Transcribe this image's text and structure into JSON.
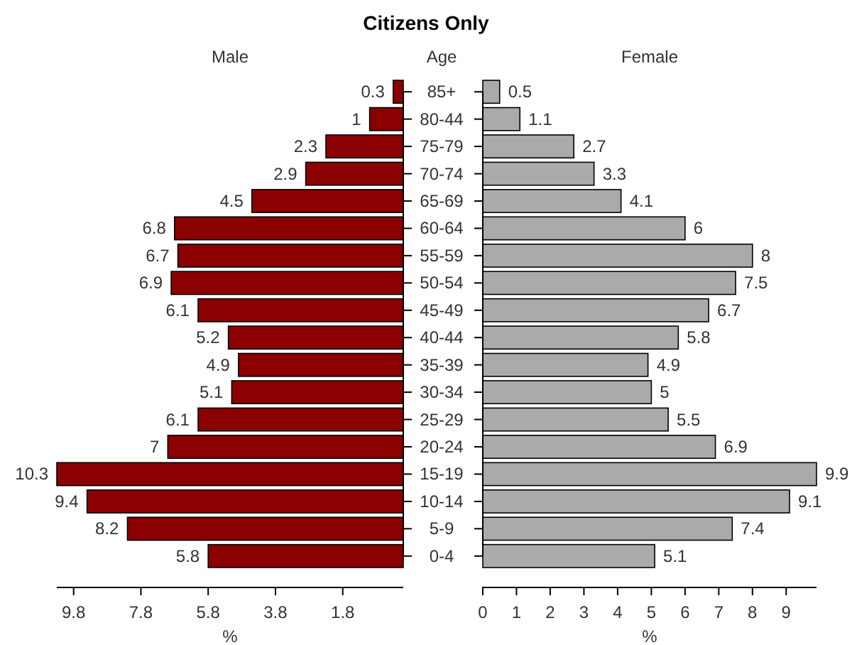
{
  "chart_data": [
    {
      "type": "bar",
      "orientation": "horizontal",
      "title": "Citizens Only",
      "subtitle": "Male",
      "xlabel": "%",
      "categories": [
        null,
        null,
        null,
        null,
        null,
        null,
        null,
        null,
        null,
        null,
        null,
        null,
        null,
        null,
        null,
        null,
        null,
        null
      ],
      "series": [
        {
          "color": "#8b0000",
          "values": [
            0.3,
            1,
            2.3,
            2.9,
            4.5,
            6.8,
            6.7,
            6.9,
            6.1,
            5.2,
            4.9,
            5.1,
            6.1,
            7,
            10.3,
            9.4,
            8.2,
            5.8
          ]
        }
      ],
      "xlim": [
        10.3,
        0
      ],
      "xticks": [
        9.8,
        7.8,
        5.8,
        3.8,
        1.8
      ],
      "data_labels": true,
      "grid": false
    },
    {
      "type": "bar",
      "orientation": "horizontal",
      "subtitle": "Female",
      "ylabel": "Age",
      "xlabel": "%",
      "categories": [
        "85+",
        "80-44",
        "75-79",
        "70-74",
        "65-69",
        "60-64",
        "55-59",
        "50-54",
        "45-49",
        "40-44",
        "35-39",
        "30-34",
        "25-29",
        "20-24",
        "15-19",
        "10-14",
        "5-9",
        "0-4"
      ],
      "series": [
        {
          "color": "#aaaaaa",
          "values": [
            0.5,
            1.1,
            2.7,
            3.3,
            4.1,
            6,
            8,
            7.5,
            6.7,
            5.8,
            4.9,
            5,
            5.5,
            6.9,
            9.9,
            9.1,
            7.4,
            5.1
          ]
        }
      ],
      "xlim": [
        0,
        9.9
      ],
      "xticks": [
        0,
        1,
        2,
        3,
        4,
        5,
        6,
        7,
        8,
        9
      ],
      "data_labels": true,
      "grid": false
    }
  ]
}
